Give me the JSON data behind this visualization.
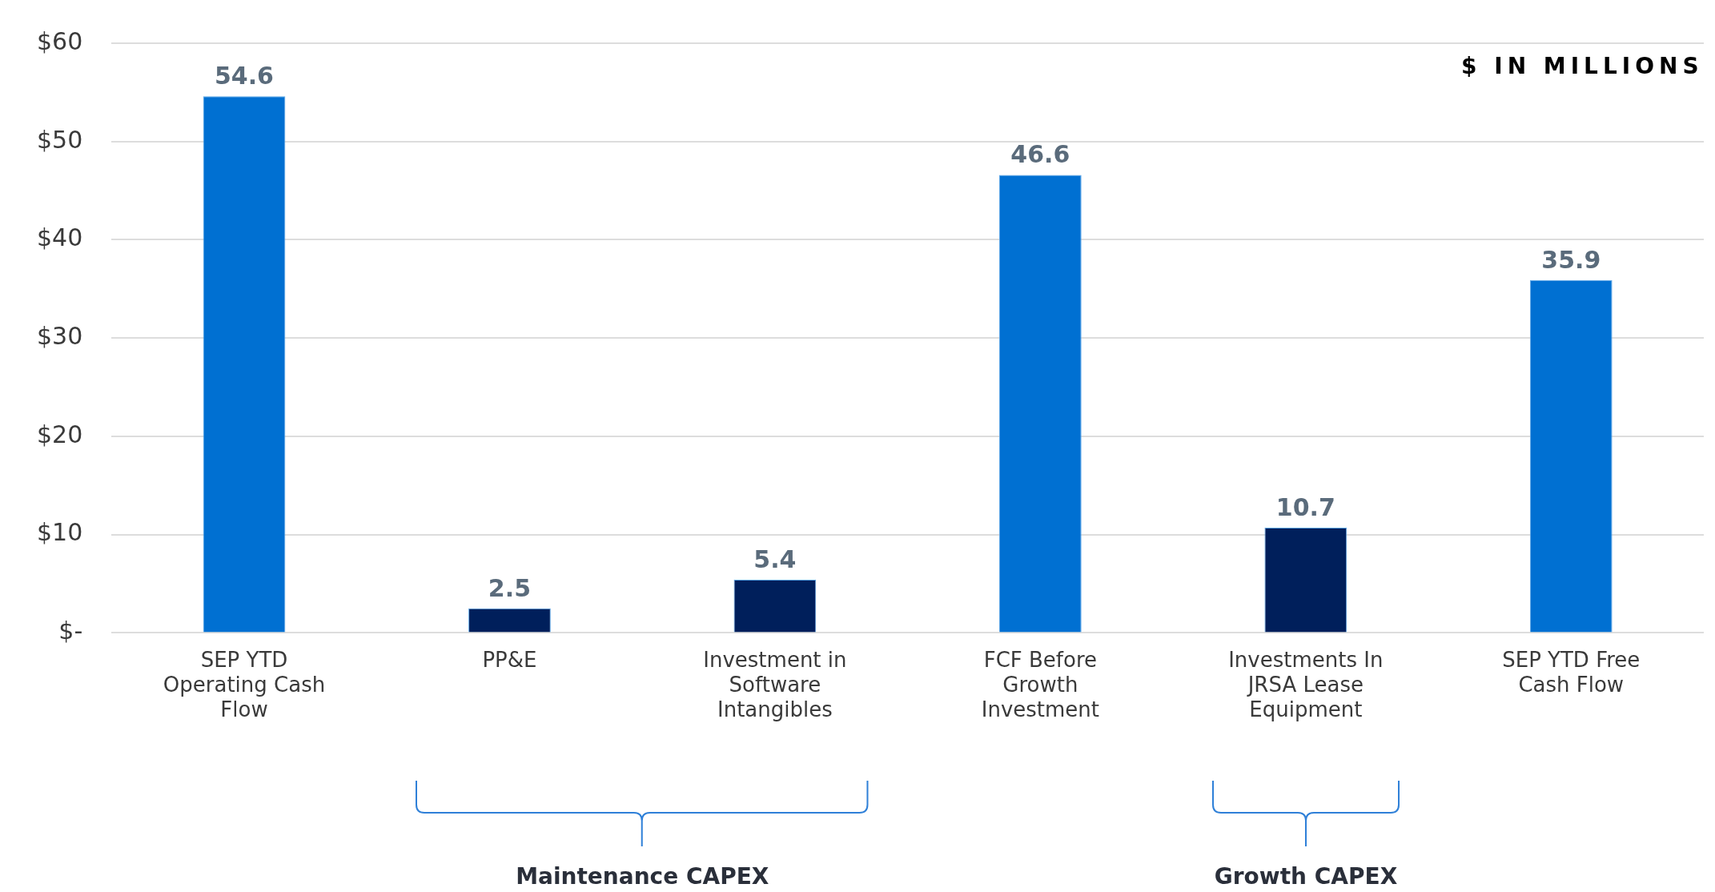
{
  "chart_data": {
    "type": "bar",
    "categories": [
      "SEP YTD Operating Cash Flow",
      "PP&E",
      "Investment in Software Intangibles",
      "FCF Before Growth Investment",
      "Investments In JRSA Lease Equipment",
      "SEP YTD Free Cash Flow"
    ],
    "values": [
      54.6,
      2.5,
      5.4,
      46.6,
      10.7,
      35.9
    ],
    "colors": [
      "#0070d2",
      "#001f5b",
      "#001f5b",
      "#0070d2",
      "#001f5b",
      "#0070d2"
    ],
    "ylim": [
      0,
      60
    ],
    "yticks": [
      {
        "value": 0,
        "label": "$-"
      },
      {
        "value": 10,
        "label": "$10"
      },
      {
        "value": 20,
        "label": "$20"
      },
      {
        "value": 30,
        "label": "$30"
      },
      {
        "value": 40,
        "label": "$40"
      },
      {
        "value": 50,
        "label": "$50"
      },
      {
        "value": 60,
        "label": "$60"
      }
    ],
    "grid": "y",
    "data_labels": true,
    "legend": false,
    "annotations": [
      "$ IN MILLIONS",
      "Maintenance CAPEX",
      "Growth CAPEX"
    ]
  }
}
